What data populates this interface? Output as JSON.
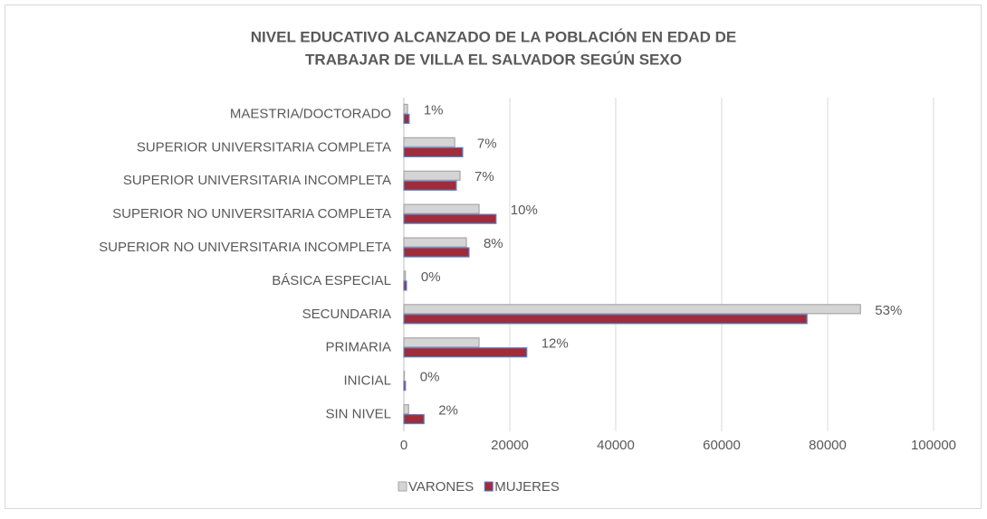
{
  "chart_data": {
    "type": "bar",
    "orientation": "horizontal",
    "title": [
      "NIVEL EDUCATIVO ALCANZADO DE LA POBLACIÓN EN EDAD DE",
      "TRABAJAR DE VILLA EL SALVADOR SEGÚN SEXO"
    ],
    "categories": [
      "MAESTRIA/DOCTORADO",
      "SUPERIOR UNIVERSITARIA COMPLETA",
      "SUPERIOR UNIVERSITARIA INCOMPLETA",
      "SUPERIOR NO UNIVERSITARIA COMPLETA",
      "SUPERIOR NO UNIVERSITARIA INCOMPLETA",
      "BÁSICA ESPECIAL",
      "SECUNDARIA",
      "PRIMARIA",
      "INICIAL",
      "SIN NIVEL"
    ],
    "series": [
      {
        "name": "VARONES",
        "color": "#d4d4d4",
        "stroke": "#a6a6a6",
        "values": [
          700,
          9600,
          10600,
          14200,
          11800,
          300,
          86200,
          14200,
          100,
          900
        ]
      },
      {
        "name": "MUJERES",
        "color": "#a02c3a",
        "stroke": "#5b7fc4",
        "values": [
          1000,
          11100,
          9900,
          17400,
          12300,
          500,
          76100,
          23200,
          300,
          3800
        ]
      }
    ],
    "annotations": [
      "1%",
      "7%",
      "7%",
      "10%",
      "8%",
      "0%",
      "53%",
      "12%",
      "0%",
      "2%"
    ],
    "xlim": [
      0,
      100000
    ],
    "xticks": [
      0,
      20000,
      40000,
      60000,
      80000,
      100000
    ],
    "grid": true,
    "legend": "bottom"
  }
}
